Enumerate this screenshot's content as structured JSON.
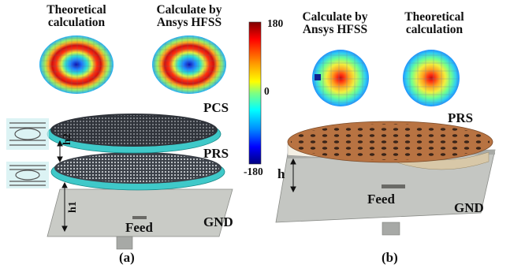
{
  "panel_a": {
    "caption": "(a)",
    "map_left_title": [
      "Theoretical",
      "calculation"
    ],
    "map_right_title": [
      "Calculate by",
      "Ansys HFSS"
    ],
    "layer_top": "PCS",
    "layer_middle": "PRS",
    "ground": "GND",
    "feed": "Feed",
    "height_1": "h1",
    "height_2": "h2"
  },
  "panel_b": {
    "caption": "(b)",
    "map_left_title": [
      "Calculate by",
      "Ansys HFSS"
    ],
    "map_right_title": [
      "Theoretical",
      "calculation"
    ],
    "layer": "PRS",
    "ground": "GND",
    "feed": "Feed",
    "height": "h"
  },
  "colorbar": {
    "max": "180",
    "mid": "0",
    "min": "-180",
    "colors": [
      "#7f0000",
      "#ff0000",
      "#ff8c00",
      "#ffff00",
      "#7fff7f",
      "#00ffff",
      "#0080ff",
      "#0000ff",
      "#00007f"
    ]
  }
}
